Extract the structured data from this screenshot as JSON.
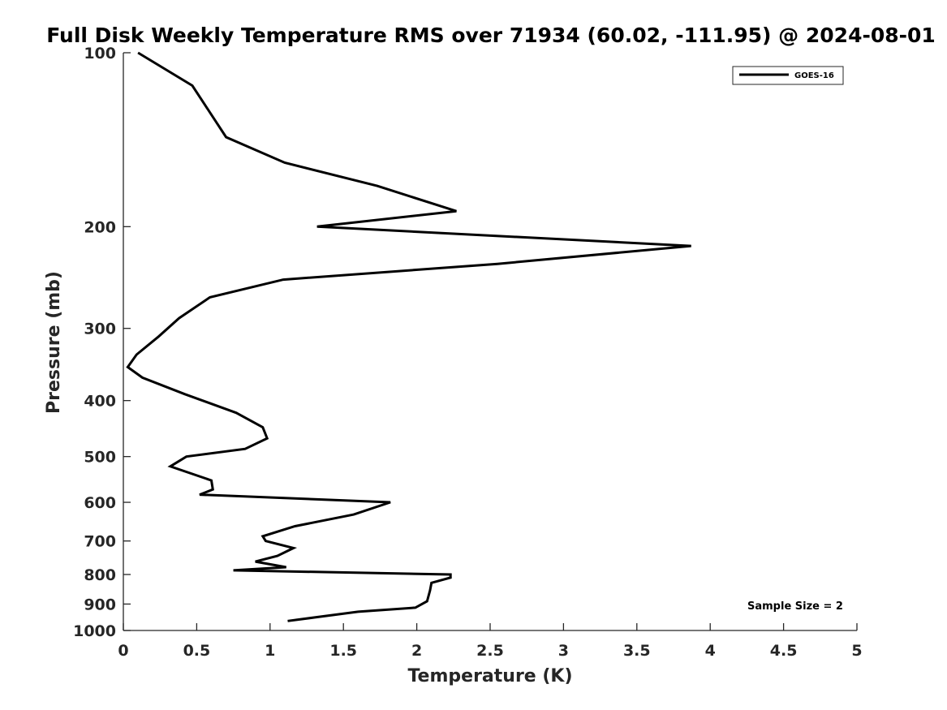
{
  "chart_data": {
    "type": "line",
    "title": "Full Disk Weekly Temperature RMS over 71934 (60.02, -111.95) @ 2024-08-01",
    "xlabel": "Temperature (K)",
    "ylabel": "Pressure (mb)",
    "xlim": [
      0,
      5
    ],
    "ylim": [
      100,
      1000
    ],
    "y_scale": "log",
    "y_reversed": true,
    "grid": false,
    "x_ticks": [
      0,
      0.5,
      1,
      1.5,
      2,
      2.5,
      3,
      3.5,
      4,
      4.5,
      5
    ],
    "x_tick_labels": [
      "0",
      "0.5",
      "1",
      "1.5",
      "2",
      "2.5",
      "3",
      "3.5",
      "4",
      "4.5",
      "5"
    ],
    "y_ticks": [
      100,
      200,
      300,
      400,
      500,
      600,
      700,
      800,
      900,
      1000
    ],
    "y_tick_labels": [
      "100",
      "200",
      "300",
      "400",
      "500",
      "600",
      "700",
      "800",
      "900",
      "1000"
    ],
    "legend_position": "top-right",
    "series": [
      {
        "name": "GOES-16",
        "color": "#000000",
        "x": [
          0.1,
          0.47,
          0.7,
          1.1,
          1.73,
          2.27,
          1.32,
          3.87,
          2.55,
          1.09,
          0.59,
          0.38,
          0.24,
          0.09,
          0.03,
          0.13,
          0.42,
          0.77,
          0.95,
          0.98,
          0.83,
          0.43,
          0.32,
          0.6,
          0.61,
          0.52,
          1.82,
          1.57,
          1.17,
          0.95,
          0.97,
          1.16,
          1.05,
          0.9,
          1.11,
          0.75,
          2.23,
          2.23,
          2.1,
          2.09,
          2.07,
          1.99,
          1.6,
          1.12
        ],
        "y": [
          100,
          114,
          140,
          155,
          170,
          188,
          200,
          216,
          232,
          247,
          265,
          288,
          310,
          333,
          350,
          365,
          390,
          420,
          445,
          465,
          485,
          500,
          520,
          550,
          570,
          582,
          600,
          630,
          660,
          687,
          700,
          720,
          743,
          760,
          777,
          787,
          800,
          810,
          827,
          853,
          890,
          913,
          928,
          963
        ]
      }
    ],
    "annotation": "Sample Size = 2"
  },
  "colors": {
    "line": "#000000",
    "axis": "#262626",
    "background": "#ffffff"
  }
}
